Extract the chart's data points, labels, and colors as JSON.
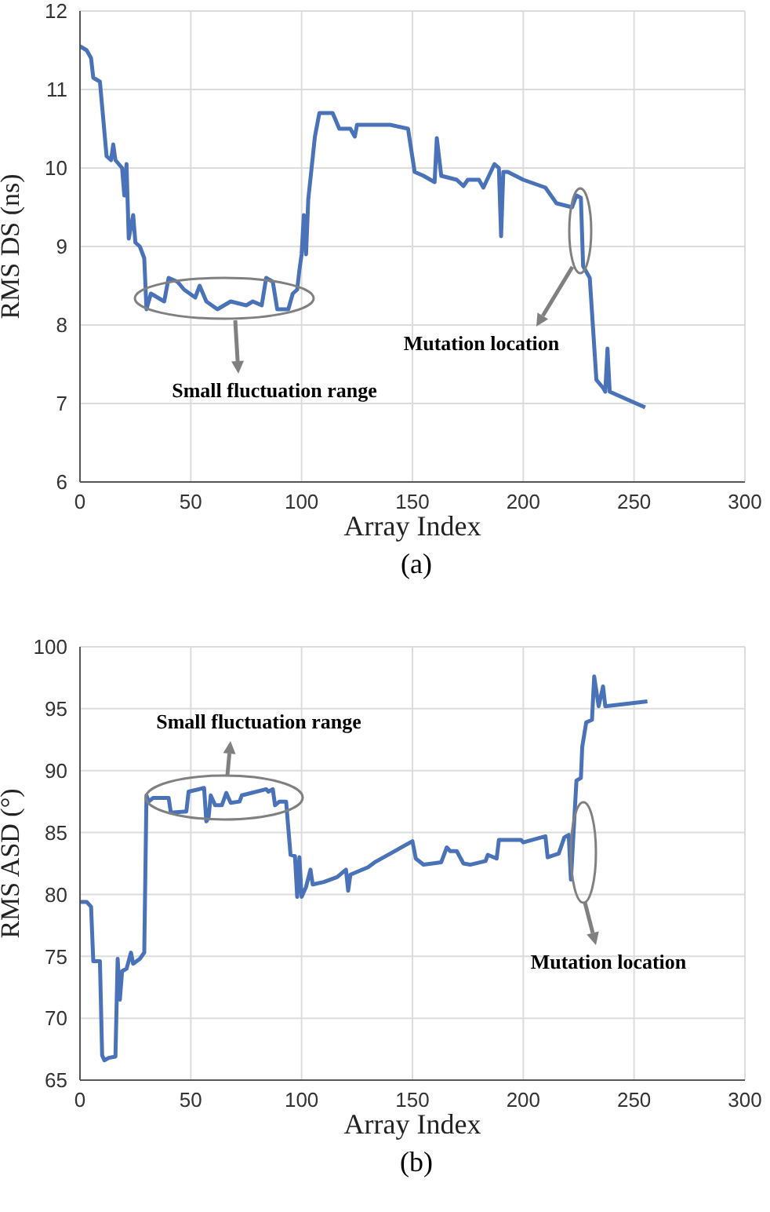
{
  "chart_data": [
    {
      "type": "line",
      "xlabel": "Array Index",
      "ylabel": "RMS DS (ns)",
      "xlim": [
        0,
        300
      ],
      "xticks": [
        0,
        50,
        100,
        150,
        200,
        250,
        300
      ],
      "ylim": [
        6,
        12
      ],
      "yticks": [
        6,
        7,
        8,
        9,
        10,
        11,
        12
      ],
      "grid": true,
      "marker": "none",
      "line_style": "solid",
      "x": [
        0,
        3,
        5,
        6,
        9,
        12,
        14,
        15,
        16,
        19,
        20,
        21,
        22,
        24,
        25,
        27,
        29,
        30,
        32,
        38,
        40,
        44,
        47,
        52,
        54,
        57,
        62,
        65,
        68,
        75,
        78,
        82,
        84,
        87,
        89,
        94,
        96,
        98,
        99,
        100,
        101,
        102,
        103,
        106,
        108,
        114,
        117,
        122,
        124,
        125,
        131,
        140,
        148,
        151,
        155,
        160,
        161,
        163,
        170,
        173,
        175,
        180,
        182,
        187,
        189,
        190,
        191,
        193,
        200,
        210,
        215,
        222,
        224,
        226,
        227,
        230,
        233,
        236,
        237,
        238,
        239,
        255
      ],
      "series": [
        {
          "color": "#4a72b8",
          "values": [
            11.55,
            11.5,
            11.4,
            11.15,
            11.1,
            10.15,
            10.1,
            10.3,
            10.1,
            10.0,
            9.65,
            10.05,
            9.1,
            9.4,
            9.05,
            9.0,
            8.85,
            8.2,
            8.4,
            8.3,
            8.6,
            8.55,
            8.45,
            8.35,
            8.5,
            8.3,
            8.2,
            8.25,
            8.3,
            8.25,
            8.3,
            8.25,
            8.6,
            8.55,
            8.2,
            8.2,
            8.4,
            8.45,
            8.7,
            8.9,
            9.4,
            8.9,
            9.6,
            10.4,
            10.7,
            10.7,
            10.5,
            10.5,
            10.4,
            10.55,
            10.55,
            10.55,
            10.5,
            9.95,
            9.9,
            9.82,
            10.38,
            9.9,
            9.85,
            9.77,
            9.85,
            9.85,
            9.75,
            10.05,
            10.0,
            9.13,
            9.95,
            9.95,
            9.85,
            9.75,
            9.55,
            9.5,
            9.65,
            9.62,
            8.75,
            8.6,
            7.3,
            7.2,
            7.15,
            7.7,
            7.15,
            6.95
          ]
        }
      ],
      "annotations": [
        "Small fluctuation range",
        "Mutation location",
        "(a)"
      ]
    },
    {
      "type": "line",
      "xlabel": "Array Index",
      "ylabel": "RMS ASD (°)",
      "xlim": [
        0,
        300
      ],
      "xticks": [
        0,
        50,
        100,
        150,
        200,
        250,
        300
      ],
      "ylim": [
        65,
        100
      ],
      "yticks": [
        65,
        70,
        75,
        80,
        85,
        90,
        95,
        100
      ],
      "grid": true,
      "marker": "none",
      "line_style": "solid",
      "x": [
        0,
        3,
        5,
        6,
        9,
        10,
        11,
        13,
        16,
        17,
        18,
        19,
        21,
        23,
        24,
        27,
        29,
        30,
        31,
        33,
        40,
        41,
        48,
        49,
        56,
        57,
        58,
        59,
        61,
        64,
        66,
        68,
        72,
        73,
        84,
        85,
        87,
        88,
        90,
        93,
        95,
        97,
        98,
        99,
        100,
        102,
        104,
        105,
        110,
        116,
        120,
        121,
        122,
        130,
        133,
        137,
        150,
        151.5,
        155,
        163,
        165.5,
        167,
        170,
        173,
        176,
        183,
        184,
        188,
        189,
        199,
        200,
        210,
        211,
        216,
        218.5,
        220.5,
        221.5,
        224,
        226,
        226.6,
        228.4,
        231,
        232,
        234,
        236,
        237,
        256
      ],
      "series": [
        {
          "color": "#4a72b8",
          "values": [
            79.4,
            79.4,
            79.0,
            74.6,
            74.6,
            67.0,
            66.6,
            66.8,
            66.9,
            74.8,
            71.5,
            73.8,
            74.0,
            75.3,
            74.4,
            74.8,
            75.3,
            88.0,
            87.5,
            87.8,
            87.8,
            86.6,
            86.7,
            88.3,
            88.6,
            85.9,
            86.2,
            88.0,
            87.2,
            87.2,
            88.2,
            87.4,
            87.5,
            88.0,
            88.5,
            88.3,
            88.5,
            87.2,
            87.5,
            87.5,
            83.2,
            83.1,
            79.8,
            83.0,
            79.8,
            80.6,
            82.0,
            80.8,
            81.0,
            81.4,
            82.0,
            80.3,
            81.6,
            82.2,
            82.6,
            83.0,
            84.3,
            82.9,
            82.4,
            82.6,
            83.8,
            83.5,
            83.5,
            82.5,
            82.4,
            82.7,
            83.2,
            82.9,
            84.4,
            84.4,
            84.2,
            84.7,
            83.0,
            83.3,
            84.6,
            84.8,
            81.2,
            89.2,
            89.4,
            91.9,
            93.9,
            94.1,
            97.6,
            95.2,
            96.8,
            95.2,
            95.6
          ]
        }
      ],
      "annotations": [
        "Small fluctuation range",
        "Mutation location",
        "(b)"
      ]
    }
  ]
}
